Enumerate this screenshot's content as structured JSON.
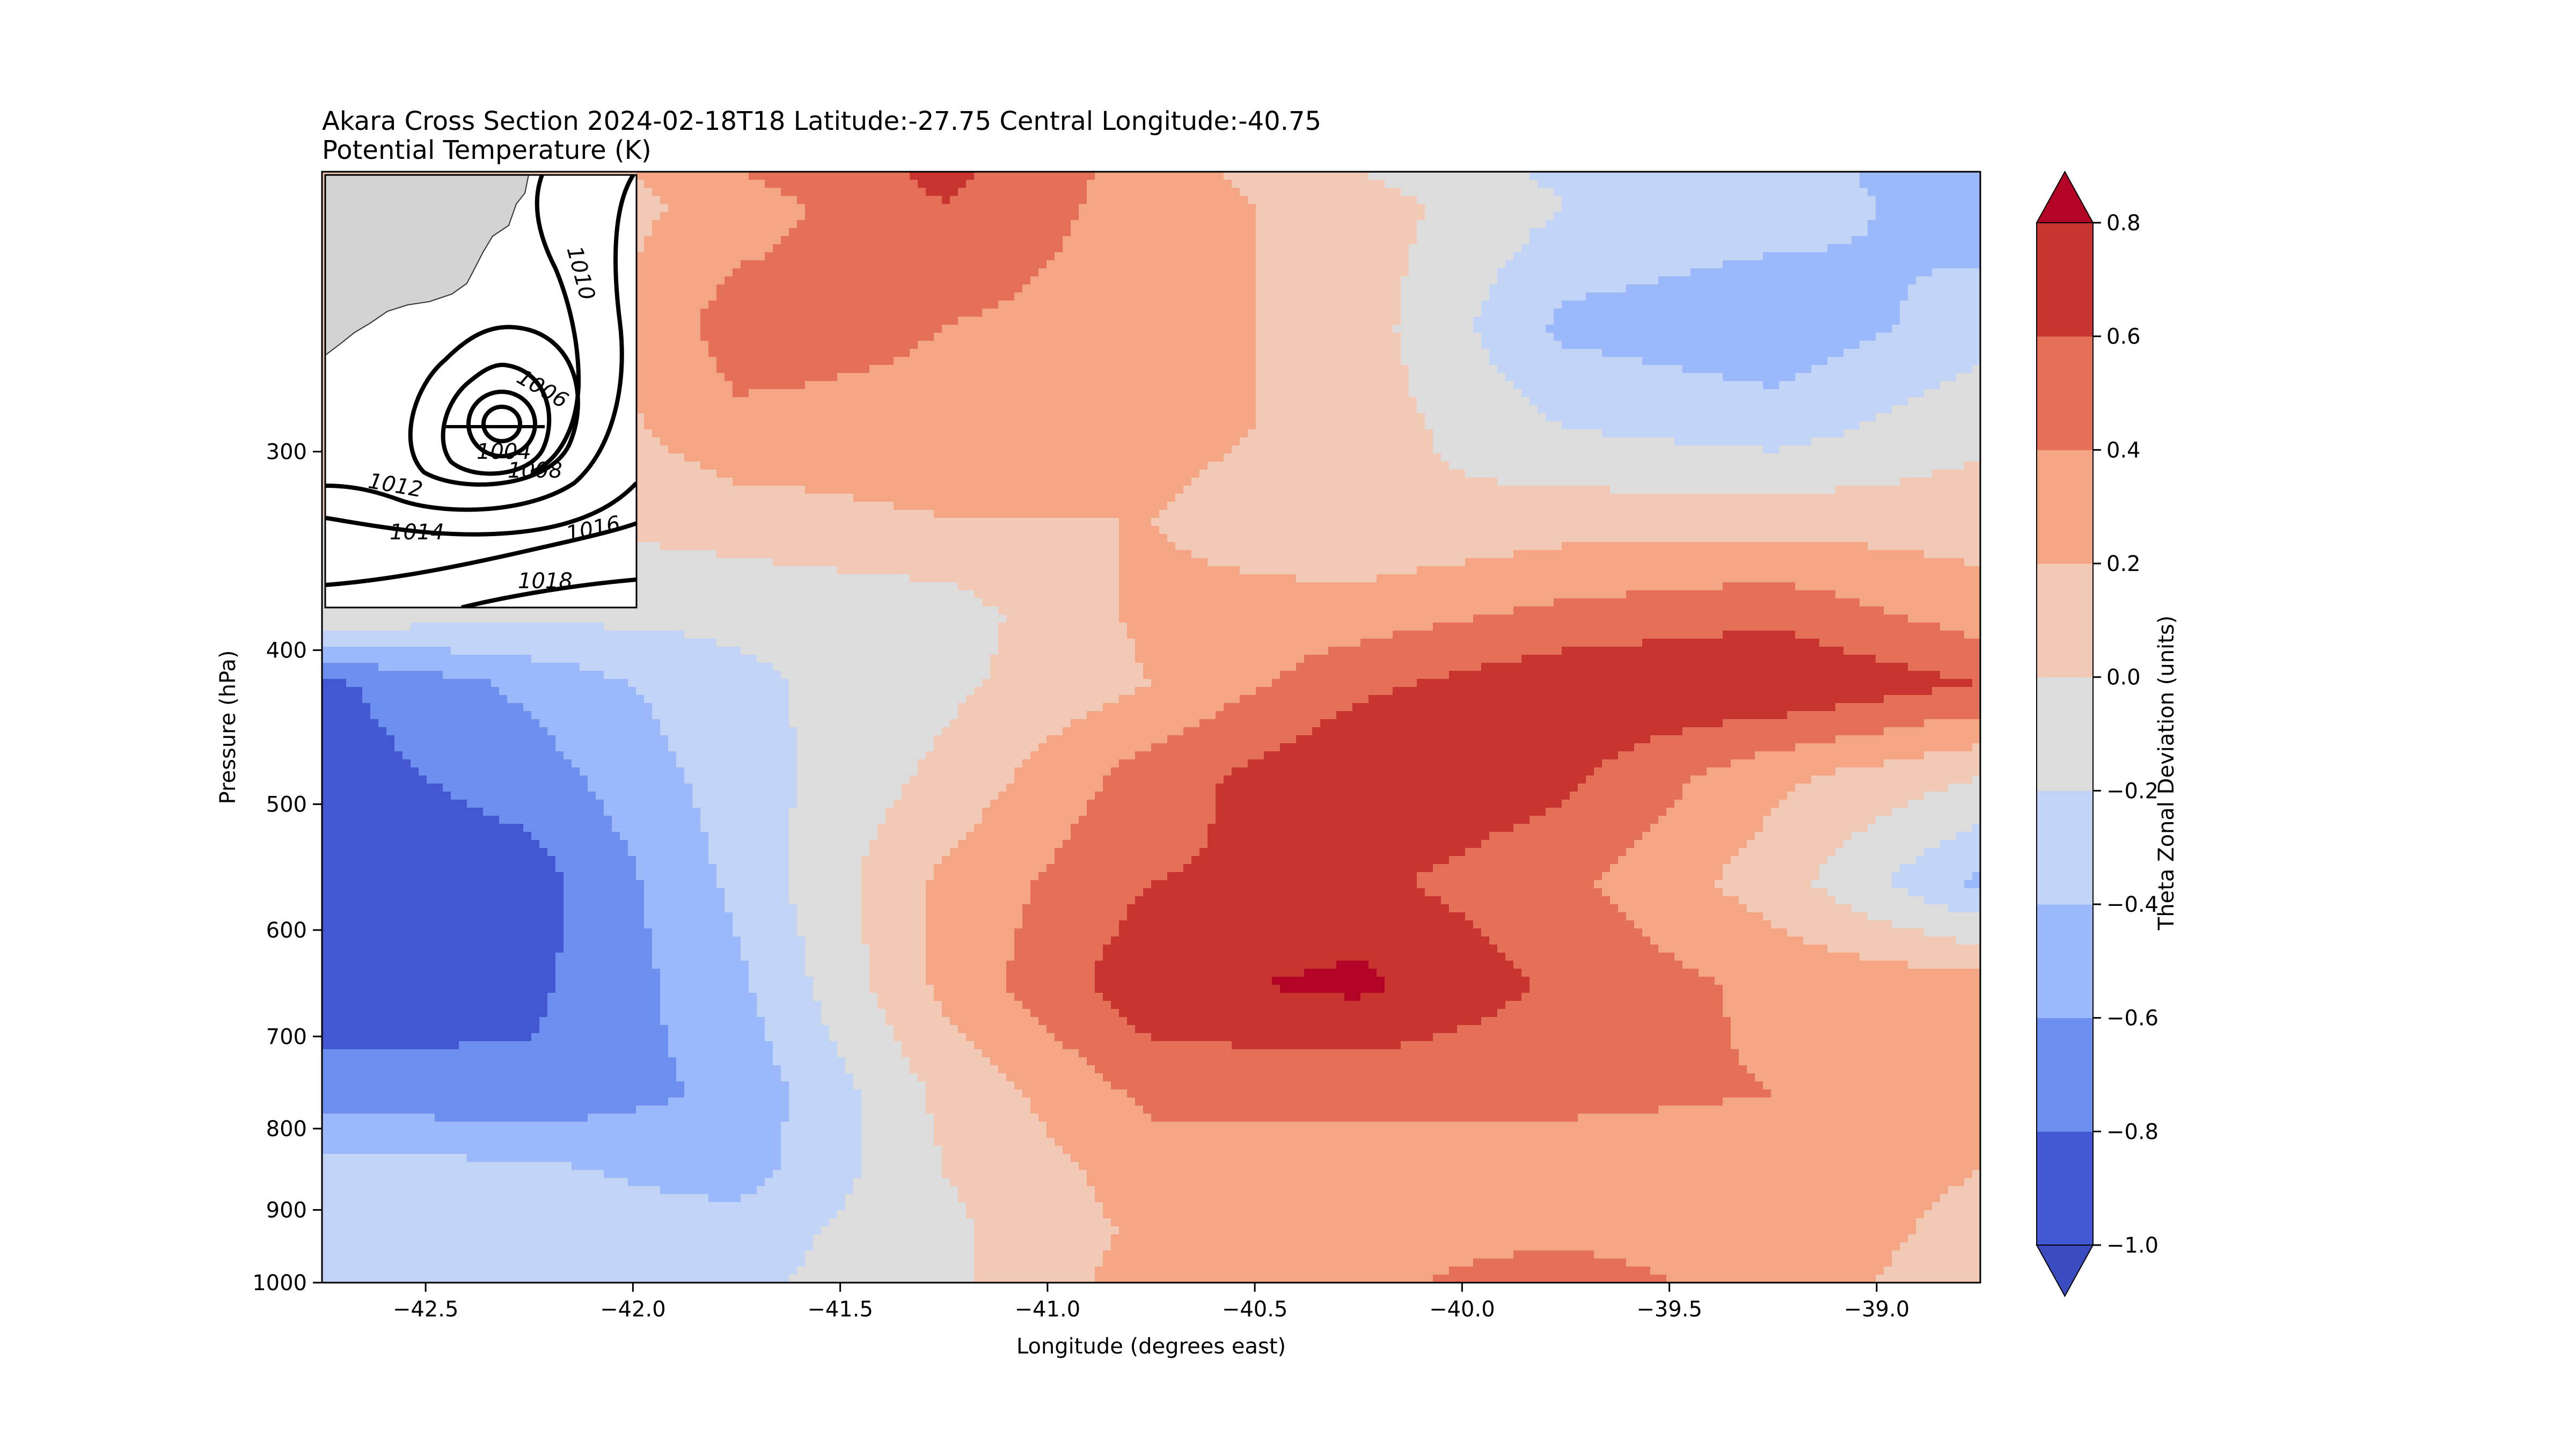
{
  "chart_data": {
    "type": "heatmap",
    "title": "Akara Cross Section 2024-02-18T18 Latitude:-27.75 Central Longitude:-40.75",
    "subtitle": "Potential Temperature (K)",
    "xlabel": "Longitude (degrees east)",
    "ylabel": "Pressure (hPa)",
    "xlim": [
      -42.75,
      -38.75
    ],
    "ylim": [
      1000,
      200
    ],
    "y_scale": "log",
    "x_ticks": [
      -42.5,
      -42.0,
      -41.5,
      -41.0,
      -40.5,
      -40.0,
      -39.5,
      -39.0
    ],
    "x_tick_labels": [
      "−42.5",
      "−42.0",
      "−41.5",
      "−41.0",
      "−40.5",
      "−40.0",
      "−39.5",
      "−39.0"
    ],
    "y_ticks": [
      300,
      400,
      500,
      600,
      700,
      800,
      900,
      1000
    ],
    "y_tick_labels": [
      "300",
      "400",
      "500",
      "600",
      "700",
      "800",
      "900",
      "1000"
    ],
    "grid": false,
    "colorbar": {
      "label": "Theta Zonal Deviation (units)",
      "levels": [
        -1.0,
        -0.8,
        -0.6,
        -0.4,
        -0.2,
        0.0,
        0.2,
        0.4,
        0.6,
        0.8
      ],
      "tick_labels": [
        "−1.0",
        "−0.8",
        "−0.6",
        "−0.4",
        "−0.2",
        "0.0",
        "0.2",
        "0.4",
        "0.6",
        "0.8"
      ],
      "colors": [
        "#4257d1",
        "#6c8ff0",
        "#9bb8fb",
        "#c2d4f6",
        "#dcdcdc",
        "#f2c9b4",
        "#f4a684",
        "#e57058",
        "#c83531"
      ],
      "under_color": "#3b4cc0",
      "over_color": "#b40426",
      "extend": "both"
    },
    "field_nodes_lon": [
      -42.75,
      -42.25,
      -41.75,
      -41.25,
      -40.75,
      -40.25,
      -39.75,
      -39.25,
      -38.75
    ],
    "field_nodes_p": [
      1000,
      930,
      850,
      760,
      650,
      560,
      480,
      420,
      380,
      330,
      290,
      250,
      210,
      200
    ],
    "field_values": [
      [
        -0.35,
        -0.25,
        -0.25,
        -0.05,
        0.3,
        0.35,
        0.5,
        0.3,
        0.1
      ],
      [
        -0.3,
        -0.3,
        -0.3,
        -0.05,
        0.25,
        0.35,
        0.35,
        0.3,
        0.15
      ],
      [
        -0.3,
        -0.35,
        -0.5,
        0.0,
        0.3,
        0.3,
        0.3,
        0.3,
        0.2
      ],
      [
        -0.7,
        -0.75,
        -0.55,
        0.05,
        0.45,
        0.45,
        0.45,
        0.4,
        0.3
      ],
      [
        -0.95,
        -0.85,
        -0.45,
        0.25,
        0.75,
        0.85,
        0.55,
        0.35,
        0.3
      ],
      [
        -0.95,
        -0.9,
        -0.35,
        0.25,
        0.6,
        0.65,
        0.45,
        0.1,
        -0.45
      ],
      [
        -0.9,
        -0.7,
        -0.3,
        0.05,
        0.5,
        0.8,
        0.65,
        0.25,
        0.0
      ],
      [
        -0.85,
        -0.55,
        -0.25,
        -0.05,
        0.2,
        0.55,
        0.75,
        0.8,
        0.6
      ],
      [
        -0.05,
        -0.15,
        -0.15,
        -0.1,
        0.25,
        0.3,
        0.45,
        0.55,
        0.3
      ],
      [
        0.0,
        0.0,
        0.1,
        0.2,
        0.2,
        0.0,
        0.1,
        0.1,
        0.1
      ],
      [
        0.0,
        0.0,
        0.35,
        0.35,
        0.3,
        0.1,
        -0.2,
        -0.3,
        -0.05
      ],
      [
        0.0,
        0.0,
        0.5,
        0.4,
        0.3,
        0.1,
        -0.45,
        -0.55,
        -0.3
      ],
      [
        0.0,
        0.0,
        0.3,
        0.6,
        0.3,
        0.1,
        -0.2,
        -0.3,
        -0.5
      ],
      [
        0.0,
        0.0,
        0.4,
        0.65,
        0.3,
        0.0,
        -0.25,
        -0.3,
        -0.55
      ]
    ],
    "inset_map": {
      "contour_labels": [
        "1004",
        "1006",
        "1008",
        "1010",
        "1012",
        "1014",
        "1016",
        "1018"
      ]
    }
  }
}
